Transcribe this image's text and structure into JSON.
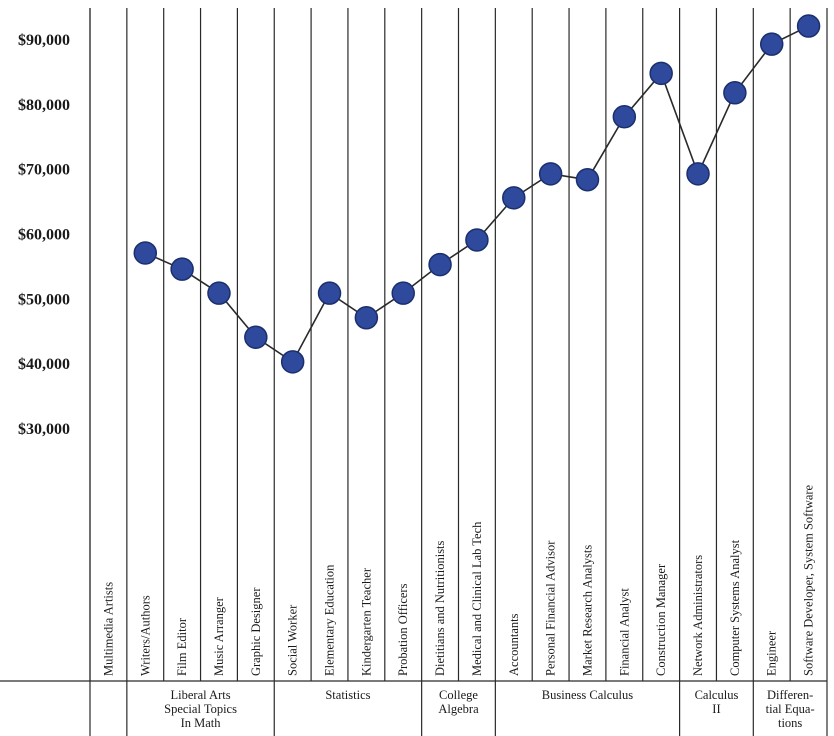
{
  "chart_data": {
    "type": "line",
    "x": [
      "Multimedia Artists",
      "Writers/Authors",
      "Film Editor",
      "Music Arranger",
      "Graphic Designer",
      "Social Worker",
      "Elementary Education",
      "Kindergarten Teacher",
      "Probation Officers",
      "Dietitians and Nutritionists",
      "Medical and Clinical Lab Tech",
      "Accountants",
      "Personal Financial Advisor",
      "Market Research Analysts",
      "Financial Analyst",
      "Construction Manager",
      "Network Administrators",
      "Computer Systems Analyst",
      "Engineer",
      "Software Developer, System Software"
    ],
    "values": [
      null,
      57000,
      54500,
      50800,
      44000,
      40200,
      50800,
      47000,
      50800,
      55200,
      59000,
      65500,
      69200,
      68300,
      78000,
      84700,
      69200,
      81700,
      89200,
      92000
    ],
    "yticks": [
      "$30,000",
      "$40,000",
      "$50,000",
      "$60,000",
      "$70,000",
      "$80,000",
      "$90,000"
    ],
    "ylim": [
      30000,
      90000
    ],
    "groups": [
      {
        "label": "Liberal Arts\nSpecial Topics\nIn Math",
        "span": [
          1,
          4
        ]
      },
      {
        "label": "Statistics",
        "span": [
          5,
          8
        ]
      },
      {
        "label": "College\nAlgebra",
        "span": [
          9,
          10
        ]
      },
      {
        "label": "Business Calculus",
        "span": [
          11,
          15
        ]
      },
      {
        "label": "Calculus\nII",
        "span": [
          16,
          17
        ]
      },
      {
        "label": "Differen-\ntial Equa-\ntions",
        "span": [
          18,
          19
        ]
      }
    ],
    "grid": "vertical",
    "title": "",
    "xlabel": "",
    "ylabel": ""
  }
}
